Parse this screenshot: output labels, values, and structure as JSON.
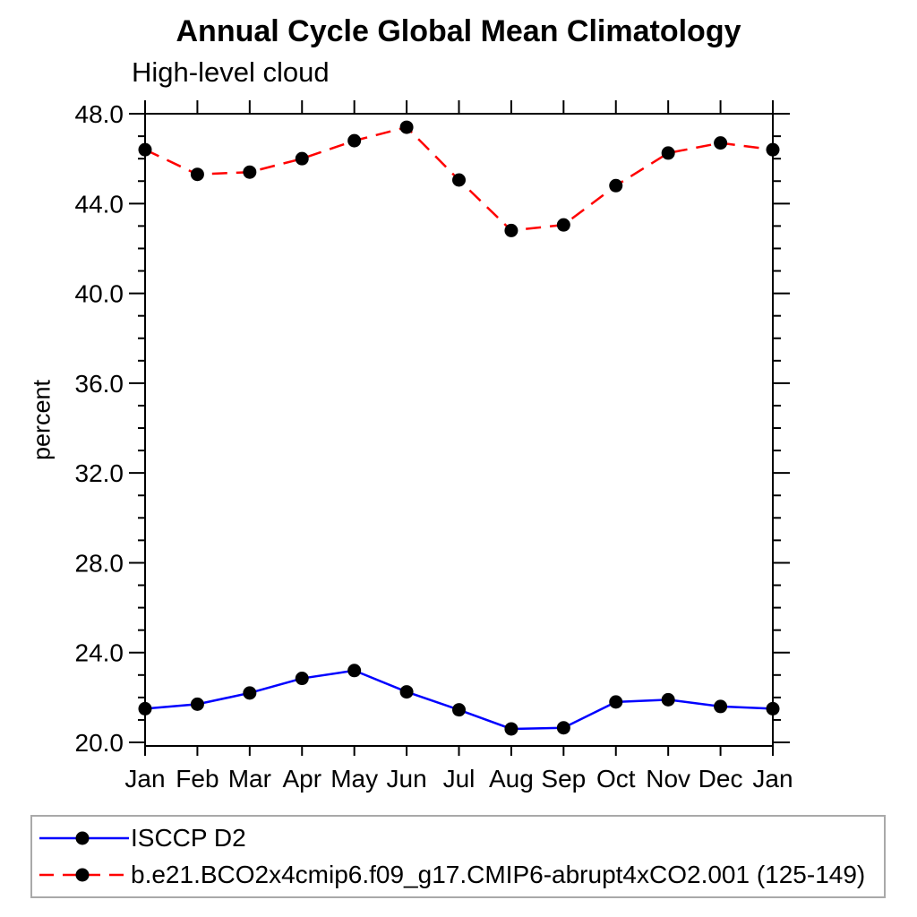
{
  "chart_data": {
    "type": "line",
    "title": "Annual Cycle Global Mean Climatology",
    "subtitle": "High-level cloud",
    "ylabel": "percent",
    "categories": [
      "Jan",
      "Feb",
      "Mar",
      "Apr",
      "May",
      "Jun",
      "Jul",
      "Aug",
      "Sep",
      "Oct",
      "Nov",
      "Dec",
      "Jan"
    ],
    "ylim": [
      20.0,
      48.0
    ],
    "ytick_major_step": 4.0,
    "ytick_minor_step": 1.0,
    "ytick_labels": [
      "20.0",
      "24.0",
      "28.0",
      "32.0",
      "36.0",
      "40.0",
      "44.0",
      "48.0"
    ],
    "grid": false,
    "legend_position": "bottom",
    "axis_color": "#000000",
    "marker": "filled-circle",
    "marker_color": "#000000",
    "series": [
      {
        "name": "ISCCP D2",
        "color": "#0000ff",
        "line_style": "solid",
        "values": [
          21.5,
          21.7,
          22.2,
          22.85,
          23.2,
          22.25,
          21.45,
          20.6,
          20.65,
          21.8,
          21.9,
          21.6,
          21.5
        ]
      },
      {
        "name": "b.e21.BCO2x4cmip6.f09_g17.CMIP6-abrupt4xCO2.001 (125-149)",
        "color": "#ff0000",
        "line_style": "dashed",
        "values": [
          46.4,
          45.3,
          45.4,
          46.0,
          46.8,
          47.4,
          45.05,
          42.8,
          43.05,
          44.8,
          46.25,
          46.7,
          46.4
        ]
      }
    ]
  }
}
